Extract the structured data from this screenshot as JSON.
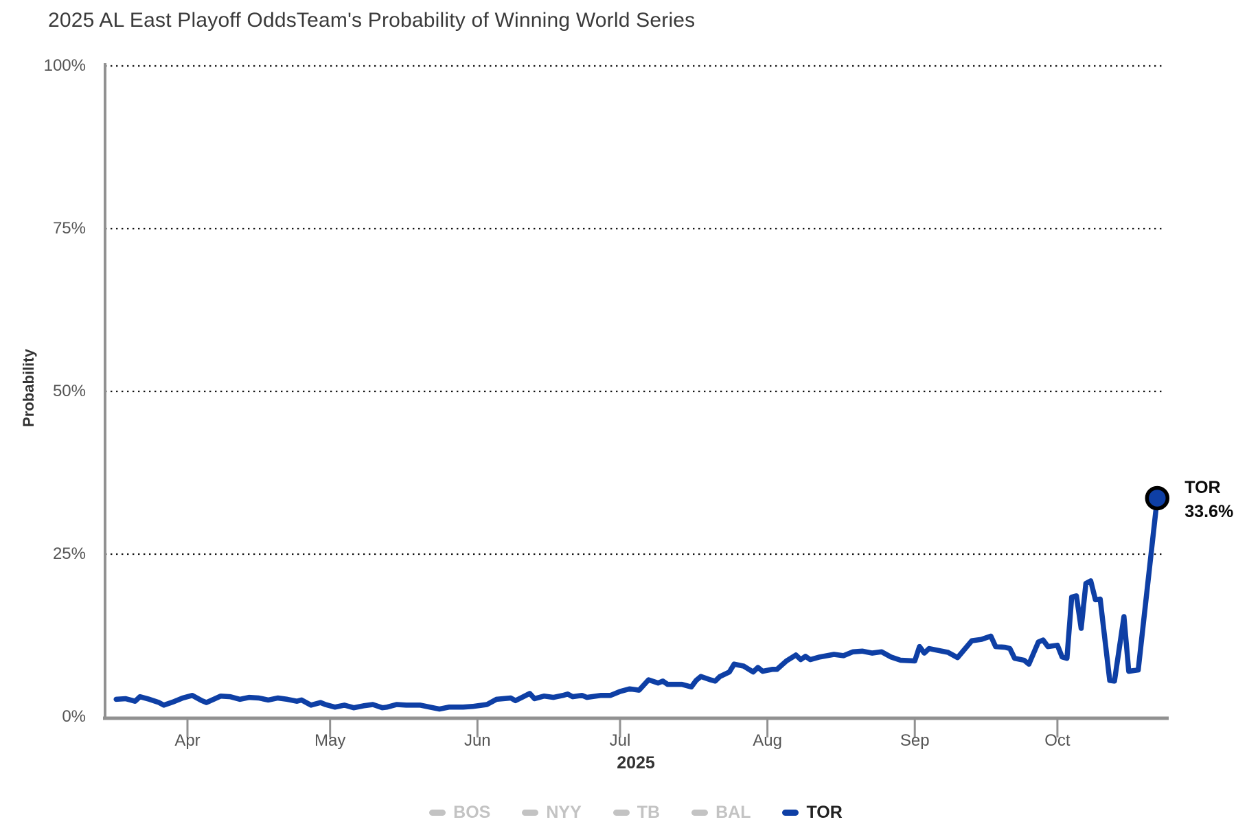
{
  "header": {
    "title": "2025 AL East Playoff Odds",
    "subtitle": "Team's Probability of Winning World Series"
  },
  "y_axis": {
    "label": "Probability",
    "ticks": [
      {
        "label": "0%",
        "pct": 0
      },
      {
        "label": "25%",
        "pct": 25
      },
      {
        "label": "50%",
        "pct": 50
      },
      {
        "label": "75%",
        "pct": 75
      },
      {
        "label": "100%",
        "pct": 100
      }
    ]
  },
  "x_axis": {
    "year_label": "2025",
    "months": [
      {
        "label": "Apr",
        "date": "2025-04-01"
      },
      {
        "label": "May",
        "date": "2025-05-01"
      },
      {
        "label": "Jun",
        "date": "2025-06-01"
      },
      {
        "label": "Jul",
        "date": "2025-07-01"
      },
      {
        "label": "Aug",
        "date": "2025-08-01"
      },
      {
        "label": "Sep",
        "date": "2025-09-01"
      },
      {
        "label": "Oct",
        "date": "2025-10-01"
      }
    ]
  },
  "annotation": {
    "team": "TOR",
    "value": "33.6%"
  },
  "colors": {
    "tor_blue": "#0e3fa5",
    "inactive_gray": "#c3c3c3",
    "axis_gray": "#919191",
    "gridline_black": "#111111",
    "annotation_black": "#0a0a0a"
  },
  "legend": [
    {
      "label": "BOS",
      "color": "#c3c3c3",
      "active": false
    },
    {
      "label": "NYY",
      "color": "#c3c3c3",
      "active": false
    },
    {
      "label": "TB",
      "color": "#c3c3c3",
      "active": false
    },
    {
      "label": "BAL",
      "color": "#c3c3c3",
      "active": false
    },
    {
      "label": "TOR",
      "color": "#0e3fa5",
      "active": true
    }
  ],
  "chart_data": {
    "type": "line",
    "title": "2025 AL East Playoff Odds",
    "subtitle": "Team's Probability of Winning World Series",
    "xlabel": "2025",
    "ylabel": "Probability",
    "ylim": [
      0,
      100
    ],
    "x_range": [
      "2025-03-17",
      "2025-10-22"
    ],
    "gridlines_pct": [
      25,
      50,
      75,
      100
    ],
    "grid_style": "dotted",
    "legend_position": "bottom",
    "inactive_series": [
      "BOS",
      "NYY",
      "TB",
      "BAL"
    ],
    "end_label": {
      "team": "TOR",
      "value_pct": 33.6
    },
    "series": [
      {
        "name": "TOR",
        "color": "#0e3fa5",
        "points": [
          [
            "2025-03-17",
            2.7
          ],
          [
            "2025-03-19",
            2.8
          ],
          [
            "2025-03-21",
            2.4
          ],
          [
            "2025-03-22",
            3.1
          ],
          [
            "2025-03-24",
            2.7
          ],
          [
            "2025-03-26",
            2.2
          ],
          [
            "2025-03-27",
            1.8
          ],
          [
            "2025-03-29",
            2.3
          ],
          [
            "2025-03-31",
            2.9
          ],
          [
            "2025-04-02",
            3.3
          ],
          [
            "2025-04-04",
            2.5
          ],
          [
            "2025-04-05",
            2.2
          ],
          [
            "2025-04-08",
            3.2
          ],
          [
            "2025-04-10",
            3.1
          ],
          [
            "2025-04-12",
            2.7
          ],
          [
            "2025-04-14",
            3.0
          ],
          [
            "2025-04-16",
            2.9
          ],
          [
            "2025-04-18",
            2.6
          ],
          [
            "2025-04-20",
            2.9
          ],
          [
            "2025-04-22",
            2.7
          ],
          [
            "2025-04-24",
            2.4
          ],
          [
            "2025-04-25",
            2.6
          ],
          [
            "2025-04-27",
            1.8
          ],
          [
            "2025-04-29",
            2.2
          ],
          [
            "2025-04-30",
            1.9
          ],
          [
            "2025-05-02",
            1.5
          ],
          [
            "2025-05-04",
            1.8
          ],
          [
            "2025-05-06",
            1.4
          ],
          [
            "2025-05-08",
            1.7
          ],
          [
            "2025-05-10",
            1.9
          ],
          [
            "2025-05-12",
            1.4
          ],
          [
            "2025-05-13",
            1.5
          ],
          [
            "2025-05-15",
            1.9
          ],
          [
            "2025-05-17",
            1.8
          ],
          [
            "2025-05-20",
            1.8
          ],
          [
            "2025-05-22",
            1.5
          ],
          [
            "2025-05-24",
            1.2
          ],
          [
            "2025-05-26",
            1.5
          ],
          [
            "2025-05-29",
            1.5
          ],
          [
            "2025-05-31",
            1.6
          ],
          [
            "2025-06-01",
            1.7
          ],
          [
            "2025-06-03",
            1.9
          ],
          [
            "2025-06-05",
            2.7
          ],
          [
            "2025-06-08",
            2.9
          ],
          [
            "2025-06-09",
            2.5
          ],
          [
            "2025-06-12",
            3.6
          ],
          [
            "2025-06-13",
            2.8
          ],
          [
            "2025-06-15",
            3.2
          ],
          [
            "2025-06-17",
            3.0
          ],
          [
            "2025-06-19",
            3.3
          ],
          [
            "2025-06-20",
            3.5
          ],
          [
            "2025-06-21",
            3.1
          ],
          [
            "2025-06-23",
            3.3
          ],
          [
            "2025-06-24",
            3.0
          ],
          [
            "2025-06-27",
            3.3
          ],
          [
            "2025-06-29",
            3.3
          ],
          [
            "2025-07-01",
            3.9
          ],
          [
            "2025-07-03",
            4.3
          ],
          [
            "2025-07-05",
            4.1
          ],
          [
            "2025-07-07",
            5.7
          ],
          [
            "2025-07-09",
            5.2
          ],
          [
            "2025-07-10",
            5.5
          ],
          [
            "2025-07-11",
            5.0
          ],
          [
            "2025-07-14",
            5.0
          ],
          [
            "2025-07-16",
            4.6
          ],
          [
            "2025-07-17",
            5.6
          ],
          [
            "2025-07-18",
            6.2
          ],
          [
            "2025-07-20",
            5.7
          ],
          [
            "2025-07-21",
            5.5
          ],
          [
            "2025-07-22",
            6.2
          ],
          [
            "2025-07-24",
            6.9
          ],
          [
            "2025-07-25",
            8.1
          ],
          [
            "2025-07-27",
            7.8
          ],
          [
            "2025-07-29",
            6.9
          ],
          [
            "2025-07-30",
            7.6
          ],
          [
            "2025-07-31",
            7.0
          ],
          [
            "2025-08-02",
            7.3
          ],
          [
            "2025-08-03",
            7.3
          ],
          [
            "2025-08-05",
            8.6
          ],
          [
            "2025-08-07",
            9.5
          ],
          [
            "2025-08-08",
            8.8
          ],
          [
            "2025-08-09",
            9.3
          ],
          [
            "2025-08-10",
            8.8
          ],
          [
            "2025-08-12",
            9.2
          ],
          [
            "2025-08-15",
            9.6
          ],
          [
            "2025-08-17",
            9.4
          ],
          [
            "2025-08-19",
            10.0
          ],
          [
            "2025-08-21",
            10.1
          ],
          [
            "2025-08-23",
            9.8
          ],
          [
            "2025-08-25",
            10.0
          ],
          [
            "2025-08-27",
            9.2
          ],
          [
            "2025-08-29",
            8.7
          ],
          [
            "2025-09-01",
            8.6
          ],
          [
            "2025-09-02",
            10.8
          ],
          [
            "2025-09-03",
            9.8
          ],
          [
            "2025-09-04",
            10.5
          ],
          [
            "2025-09-06",
            10.2
          ],
          [
            "2025-09-08",
            9.9
          ],
          [
            "2025-09-10",
            9.1
          ],
          [
            "2025-09-13",
            11.7
          ],
          [
            "2025-09-15",
            11.9
          ],
          [
            "2025-09-17",
            12.4
          ],
          [
            "2025-09-18",
            10.8
          ],
          [
            "2025-09-20",
            10.7
          ],
          [
            "2025-09-21",
            10.5
          ],
          [
            "2025-09-22",
            9.0
          ],
          [
            "2025-09-24",
            8.7
          ],
          [
            "2025-09-25",
            8.1
          ],
          [
            "2025-09-27",
            11.5
          ],
          [
            "2025-09-28",
            11.8
          ],
          [
            "2025-09-29",
            10.8
          ],
          [
            "2025-10-01",
            11.0
          ],
          [
            "2025-10-02",
            9.2
          ],
          [
            "2025-10-03",
            9.0
          ],
          [
            "2025-10-04",
            18.4
          ],
          [
            "2025-10-05",
            18.6
          ],
          [
            "2025-10-06",
            13.6
          ],
          [
            "2025-10-07",
            20.5
          ],
          [
            "2025-10-08",
            20.9
          ],
          [
            "2025-10-09",
            18.0
          ],
          [
            "2025-10-10",
            18.1
          ],
          [
            "2025-10-12",
            5.6
          ],
          [
            "2025-10-13",
            5.5
          ],
          [
            "2025-10-15",
            15.4
          ],
          [
            "2025-10-16",
            7.0
          ],
          [
            "2025-10-18",
            7.2
          ],
          [
            "2025-10-22",
            33.6
          ]
        ]
      }
    ]
  }
}
